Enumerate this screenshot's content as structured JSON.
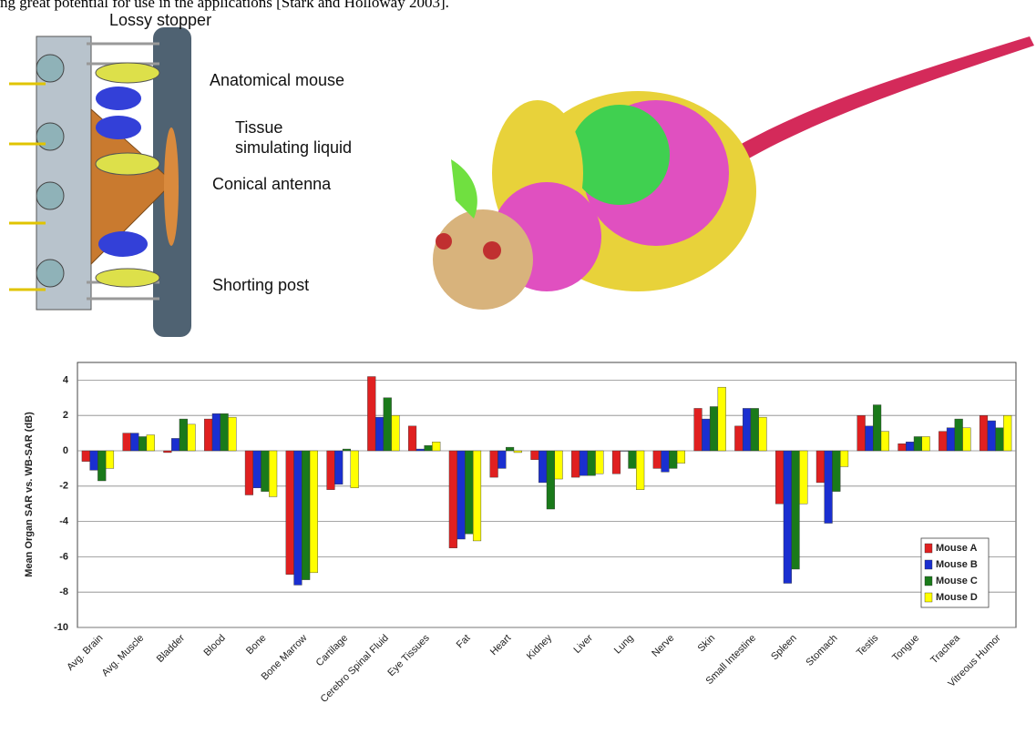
{
  "header": {
    "text": "ng great potential for use in the applications [Stark and Holloway 2003]."
  },
  "figure": {
    "labels": [
      "Lossy stopper",
      "Anatomical mouse",
      "Tissue",
      "simulating liquid",
      "Conical antenna",
      "Shorting post"
    ]
  },
  "chart_data": {
    "type": "bar",
    "y_label": "Mean Organ SAR vs. WB-SAR (dB)",
    "categories": [
      "Avg. Brain",
      "Avg. Muscle",
      "Bladder",
      "Blood",
      "Bone",
      "Bone Marrow",
      "Cartilage",
      "Cerebro Spinal Fluid",
      "Eye Tissues",
      "Fat",
      "Heart",
      "Kidney",
      "Liver",
      "Lung",
      "Nerve",
      "Skin",
      "Small Intestine",
      "Spleen",
      "Stomach",
      "Testis",
      "Tongue",
      "Trachea",
      "Vitreous Humor"
    ],
    "series": [
      {
        "name": "Mouse A",
        "color": "#e02020",
        "values": [
          -0.6,
          1.0,
          -0.1,
          1.8,
          -2.5,
          -7.0,
          -2.2,
          4.2,
          1.4,
          -5.5,
          -1.5,
          -0.5,
          -1.5,
          -1.3,
          -1.0,
          2.4,
          1.4,
          -3.0,
          -1.8,
          2.0,
          0.4,
          1.1,
          2.0
        ]
      },
      {
        "name": "Mouse B",
        "color": "#1a2fd0",
        "values": [
          -1.1,
          1.0,
          0.7,
          2.1,
          -2.1,
          -7.6,
          -1.9,
          1.9,
          0.1,
          -5.0,
          -1.0,
          -1.8,
          -1.4,
          0.0,
          -1.2,
          1.8,
          2.4,
          -7.5,
          -4.1,
          1.4,
          0.5,
          1.3,
          1.7
        ]
      },
      {
        "name": "Mouse C",
        "color": "#1a7a1a",
        "values": [
          -1.7,
          0.8,
          1.8,
          2.1,
          -2.3,
          -7.3,
          0.1,
          3.0,
          0.3,
          -4.7,
          0.2,
          -3.3,
          -1.4,
          -1.0,
          -1.0,
          2.5,
          2.4,
          -6.7,
          -2.3,
          2.6,
          0.8,
          1.8,
          1.3
        ]
      },
      {
        "name": "Mouse D",
        "color": "#ffff00",
        "values": [
          -1.0,
          0.9,
          1.5,
          1.9,
          -2.6,
          -6.9,
          -2.1,
          2.0,
          0.5,
          -5.1,
          -0.1,
          -1.6,
          -1.3,
          -2.2,
          -0.7,
          3.6,
          1.9,
          -3.0,
          -0.9,
          1.1,
          0.8,
          1.3,
          2.0
        ]
      }
    ],
    "ylim": [
      -10,
      5
    ],
    "yticks": [
      -10,
      -8,
      -6,
      -4,
      -2,
      0,
      2,
      4
    ],
    "grid": true,
    "legend": "lower right"
  }
}
